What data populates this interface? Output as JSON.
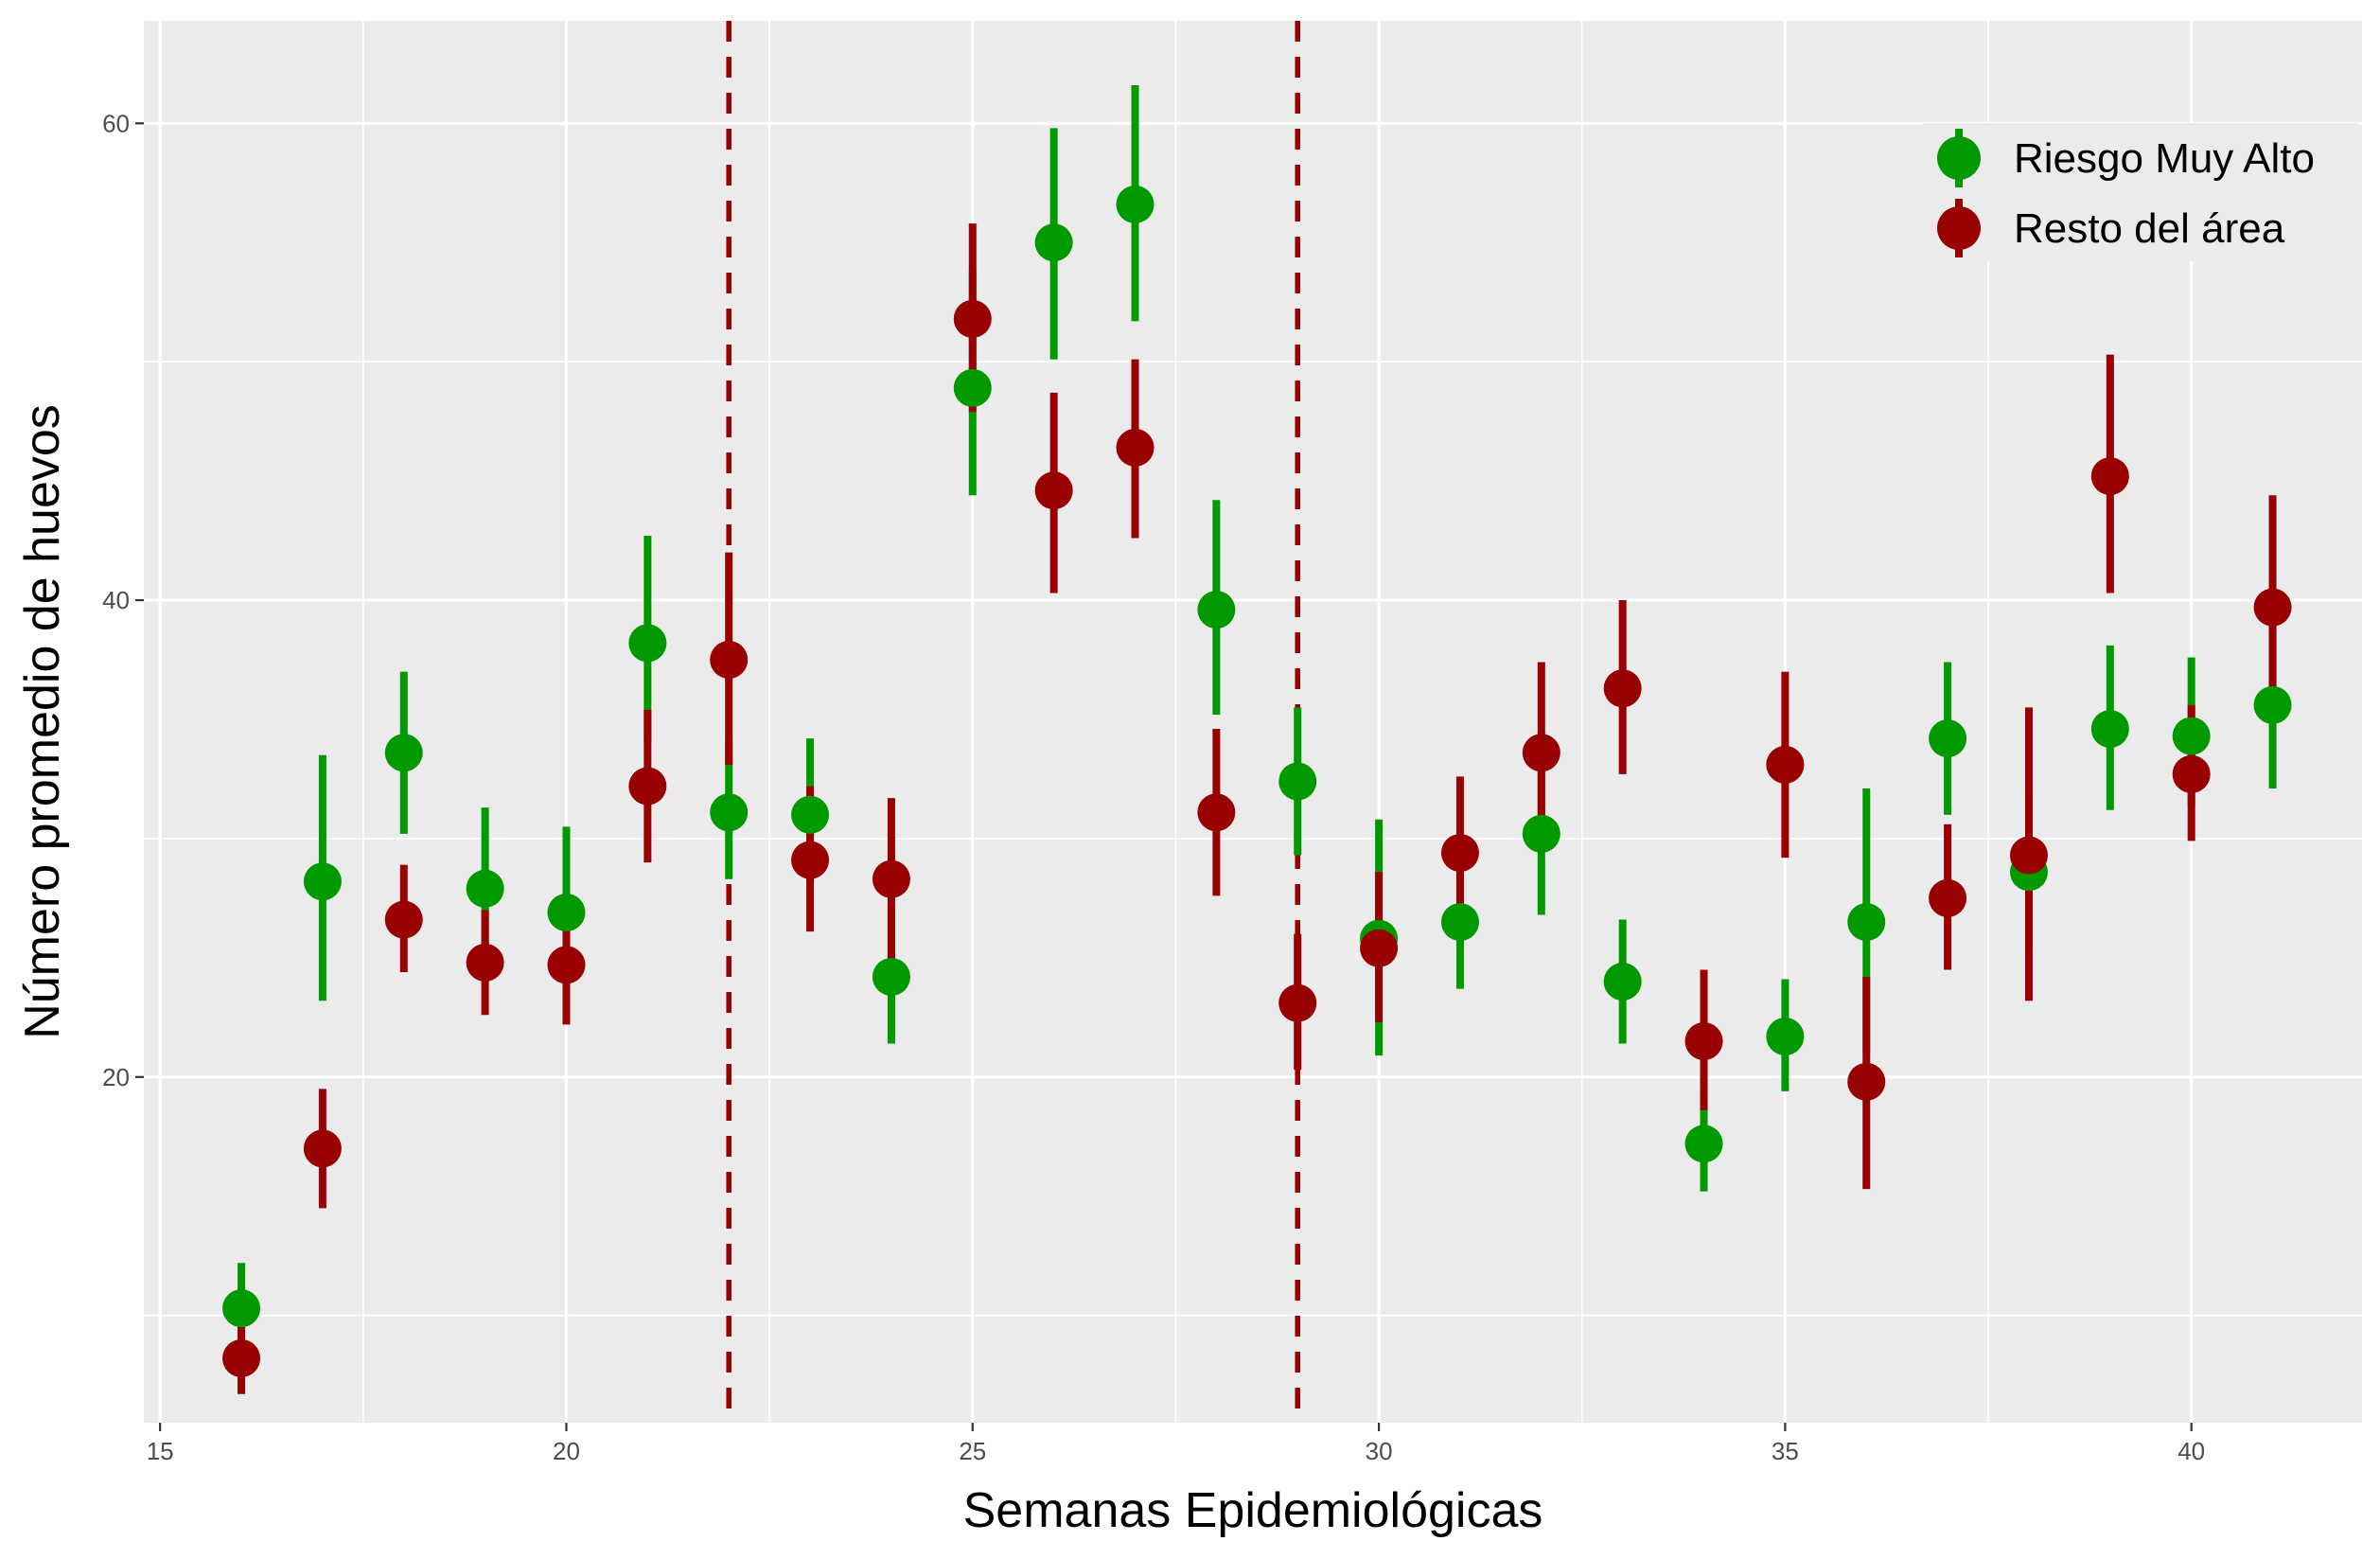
{
  "chart_data": {
    "type": "scatter",
    "xlabel": "Semanas Epidemiológicas",
    "ylabel": "Número promedio de huevos",
    "xlim": [
      14.8,
      42.1
    ],
    "ylim": [
      5.5,
      64.3
    ],
    "x_ticks": [
      15,
      20,
      25,
      30,
      35,
      40
    ],
    "y_ticks": [
      20,
      40,
      60
    ],
    "vlines": [
      22,
      29
    ],
    "vline_color": "#990000",
    "grid": true,
    "legend_position": "top-right",
    "series": [
      {
        "name": "Riesgo Muy Alto",
        "color": "#009900",
        "points": [
          {
            "x": 16,
            "y": 10.3,
            "lo": 9.0,
            "hi": 12.2
          },
          {
            "x": 17,
            "y": 28.2,
            "lo": 23.2,
            "hi": 33.5
          },
          {
            "x": 18,
            "y": 33.6,
            "lo": 30.2,
            "hi": 37.0
          },
          {
            "x": 19,
            "y": 27.9,
            "lo": 25.0,
            "hi": 31.3
          },
          {
            "x": 20,
            "y": 26.9,
            "lo": 23.9,
            "hi": 30.5
          },
          {
            "x": 21,
            "y": 38.2,
            "lo": 34.1,
            "hi": 42.7
          },
          {
            "x": 22,
            "y": 31.1,
            "lo": 28.3,
            "hi": 34.1
          },
          {
            "x": 23,
            "y": 31.0,
            "lo": 28.2,
            "hi": 34.2
          },
          {
            "x": 24,
            "y": 24.2,
            "lo": 21.4,
            "hi": 27.1
          },
          {
            "x": 25,
            "y": 48.9,
            "lo": 44.4,
            "hi": 53.8
          },
          {
            "x": 26,
            "y": 55.0,
            "lo": 50.1,
            "hi": 59.8
          },
          {
            "x": 27,
            "y": 56.6,
            "lo": 51.7,
            "hi": 61.6
          },
          {
            "x": 28,
            "y": 39.6,
            "lo": 35.2,
            "hi": 44.2
          },
          {
            "x": 29,
            "y": 32.4,
            "lo": 29.3,
            "hi": 35.5
          },
          {
            "x": 30,
            "y": 25.8,
            "lo": 20.9,
            "hi": 30.8
          },
          {
            "x": 31,
            "y": 26.5,
            "lo": 23.7,
            "hi": 29.6
          },
          {
            "x": 32,
            "y": 30.2,
            "lo": 26.8,
            "hi": 33.7
          },
          {
            "x": 33,
            "y": 24.0,
            "lo": 21.4,
            "hi": 26.6
          },
          {
            "x": 34,
            "y": 17.2,
            "lo": 15.2,
            "hi": 19.2
          },
          {
            "x": 35,
            "y": 21.7,
            "lo": 19.4,
            "hi": 24.1
          },
          {
            "x": 36,
            "y": 26.5,
            "lo": 21.0,
            "hi": 32.1
          },
          {
            "x": 37,
            "y": 34.2,
            "lo": 31.0,
            "hi": 37.4
          },
          {
            "x": 38,
            "y": 28.6,
            "lo": 25.4,
            "hi": 31.8
          },
          {
            "x": 39,
            "y": 34.6,
            "lo": 31.2,
            "hi": 38.1
          },
          {
            "x": 40,
            "y": 34.3,
            "lo": 31.4,
            "hi": 37.6
          },
          {
            "x": 41,
            "y": 35.6,
            "lo": 32.1,
            "hi": 39.2
          }
        ]
      },
      {
        "name": "Resto del área",
        "color": "#990000",
        "points": [
          {
            "x": 16,
            "y": 8.2,
            "lo": 6.7,
            "hi": 9.8
          },
          {
            "x": 17,
            "y": 17.0,
            "lo": 14.5,
            "hi": 19.5
          },
          {
            "x": 18,
            "y": 26.6,
            "lo": 24.4,
            "hi": 28.9
          },
          {
            "x": 19,
            "y": 24.8,
            "lo": 22.6,
            "hi": 27.0
          },
          {
            "x": 20,
            "y": 24.7,
            "lo": 22.2,
            "hi": 27.2
          },
          {
            "x": 21,
            "y": 32.2,
            "lo": 29.0,
            "hi": 35.4
          },
          {
            "x": 22,
            "y": 37.5,
            "lo": 33.1,
            "hi": 42.0
          },
          {
            "x": 23,
            "y": 29.1,
            "lo": 26.1,
            "hi": 32.2
          },
          {
            "x": 24,
            "y": 28.3,
            "lo": 24.9,
            "hi": 31.7
          },
          {
            "x": 25,
            "y": 51.8,
            "lo": 47.9,
            "hi": 55.8
          },
          {
            "x": 26,
            "y": 44.6,
            "lo": 40.3,
            "hi": 48.7
          },
          {
            "x": 27,
            "y": 46.4,
            "lo": 42.6,
            "hi": 50.1
          },
          {
            "x": 28,
            "y": 31.1,
            "lo": 27.6,
            "hi": 34.6
          },
          {
            "x": 29,
            "y": 23.1,
            "lo": 20.3,
            "hi": 26.0
          },
          {
            "x": 30,
            "y": 25.4,
            "lo": 22.3,
            "hi": 28.6
          },
          {
            "x": 31,
            "y": 29.4,
            "lo": 26.2,
            "hi": 32.6
          },
          {
            "x": 32,
            "y": 33.6,
            "lo": 29.8,
            "hi": 37.4
          },
          {
            "x": 33,
            "y": 36.3,
            "lo": 32.7,
            "hi": 40.0
          },
          {
            "x": 34,
            "y": 21.5,
            "lo": 18.6,
            "hi": 24.5
          },
          {
            "x": 35,
            "y": 33.1,
            "lo": 29.2,
            "hi": 37.0
          },
          {
            "x": 36,
            "y": 19.8,
            "lo": 15.3,
            "hi": 24.2
          },
          {
            "x": 37,
            "y": 27.5,
            "lo": 24.5,
            "hi": 30.6
          },
          {
            "x": 38,
            "y": 29.3,
            "lo": 23.2,
            "hi": 35.5
          },
          {
            "x": 39,
            "y": 45.2,
            "lo": 40.3,
            "hi": 50.3
          },
          {
            "x": 40,
            "y": 32.7,
            "lo": 29.9,
            "hi": 35.6
          },
          {
            "x": 41,
            "y": 39.7,
            "lo": 35.5,
            "hi": 44.4
          }
        ]
      }
    ]
  }
}
